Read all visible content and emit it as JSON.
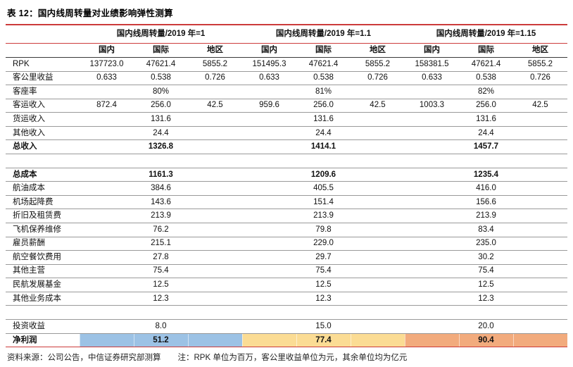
{
  "title": "表 12：国内线周转量对业绩影响弹性测算",
  "colors": {
    "rule_red": "#cc3b3b",
    "row_border_gray": "#9a9a9a",
    "highlight_blue": "#9CC2E5",
    "highlight_yellow": "#FBDC94",
    "highlight_orange": "#F2AB7D"
  },
  "table": {
    "group_headers": [
      "国内线周转量/2019 年=1",
      "国内线周转量/2019 年=1.1",
      "国内线周转量/2019 年=1.15"
    ],
    "sub_headers": [
      "国内",
      "国际",
      "地区"
    ],
    "highlight_colors": [
      "#9CC2E5",
      "#FBDC94",
      "#F2AB7D"
    ],
    "rows": [
      {
        "type": "data",
        "label": "RPK",
        "cells": [
          "137723.0",
          "47621.4",
          "5855.2",
          "151495.3",
          "47621.4",
          "5855.2",
          "158381.5",
          "47621.4",
          "5855.2"
        ]
      },
      {
        "type": "data",
        "label": "客公里收益",
        "cells": [
          "0.633",
          "0.538",
          "0.726",
          "0.633",
          "0.538",
          "0.726",
          "0.633",
          "0.538",
          "0.726"
        ]
      },
      {
        "type": "data",
        "label": "客座率",
        "cells": [
          "",
          "80%",
          "",
          "",
          "81%",
          "",
          "",
          "82%",
          ""
        ]
      },
      {
        "type": "data",
        "label": "客运收入",
        "cells": [
          "872.4",
          "256.0",
          "42.5",
          "959.6",
          "256.0",
          "42.5",
          "1003.3",
          "256.0",
          "42.5"
        ]
      },
      {
        "type": "data",
        "label": "货运收入",
        "cells": [
          "",
          "131.6",
          "",
          "",
          "131.6",
          "",
          "",
          "131.6",
          ""
        ]
      },
      {
        "type": "data",
        "label": "其他收入",
        "cells": [
          "",
          "24.4",
          "",
          "",
          "24.4",
          "",
          "",
          "24.4",
          ""
        ]
      },
      {
        "type": "data",
        "bold": true,
        "label": "总收入",
        "cells": [
          "",
          "1326.8",
          "",
          "",
          "1414.1",
          "",
          "",
          "1457.7",
          ""
        ]
      },
      {
        "type": "spacer",
        "label": "",
        "cells": [
          "",
          "",
          "",
          "",
          "",
          "",
          "",
          "",
          ""
        ]
      },
      {
        "type": "data",
        "bold": true,
        "label": "总成本",
        "cells": [
          "",
          "1161.3",
          "",
          "",
          "1209.6",
          "",
          "",
          "1235.4",
          ""
        ]
      },
      {
        "type": "data",
        "label": "航油成本",
        "cells": [
          "",
          "384.6",
          "",
          "",
          "405.5",
          "",
          "",
          "416.0",
          ""
        ]
      },
      {
        "type": "data",
        "label": "机场起降费",
        "cells": [
          "",
          "143.6",
          "",
          "",
          "151.4",
          "",
          "",
          "156.6",
          ""
        ]
      },
      {
        "type": "data",
        "label": "折旧及租赁费",
        "cells": [
          "",
          "213.9",
          "",
          "",
          "213.9",
          "",
          "",
          "213.9",
          ""
        ]
      },
      {
        "type": "data",
        "label": "飞机保养维修",
        "cells": [
          "",
          "76.2",
          "",
          "",
          "79.8",
          "",
          "",
          "83.4",
          ""
        ]
      },
      {
        "type": "data",
        "label": "雇员薪酬",
        "cells": [
          "",
          "215.1",
          "",
          "",
          "229.0",
          "",
          "",
          "235.0",
          ""
        ]
      },
      {
        "type": "data",
        "label": "航空餐饮费用",
        "cells": [
          "",
          "27.8",
          "",
          "",
          "29.7",
          "",
          "",
          "30.2",
          ""
        ]
      },
      {
        "type": "data",
        "label": "其他主营",
        "cells": [
          "",
          "75.4",
          "",
          "",
          "75.4",
          "",
          "",
          "75.4",
          ""
        ]
      },
      {
        "type": "data",
        "label": "民航发展基金",
        "cells": [
          "",
          "12.5",
          "",
          "",
          "12.5",
          "",
          "",
          "12.5",
          ""
        ]
      },
      {
        "type": "data",
        "label": "其他业务成本",
        "cells": [
          "",
          "12.3",
          "",
          "",
          "12.3",
          "",
          "",
          "12.3",
          ""
        ]
      },
      {
        "type": "spacer",
        "label": "",
        "cells": [
          "",
          "",
          "",
          "",
          "",
          "",
          "",
          "",
          ""
        ]
      },
      {
        "type": "data",
        "label": "投资收益",
        "cells": [
          "",
          "8.0",
          "",
          "",
          "15.0",
          "",
          "",
          "20.0",
          ""
        ]
      },
      {
        "type": "highlight",
        "bold": true,
        "label": "净利润",
        "cells": [
          "",
          "51.2",
          "",
          "",
          "77.4",
          "",
          "",
          "90.4",
          ""
        ]
      }
    ]
  },
  "footer": {
    "source": "资料来源：公司公告，中信证券研究部测算",
    "note": "注：RPK 单位为百万，客公里收益单位为元，其余单位均为亿元"
  }
}
